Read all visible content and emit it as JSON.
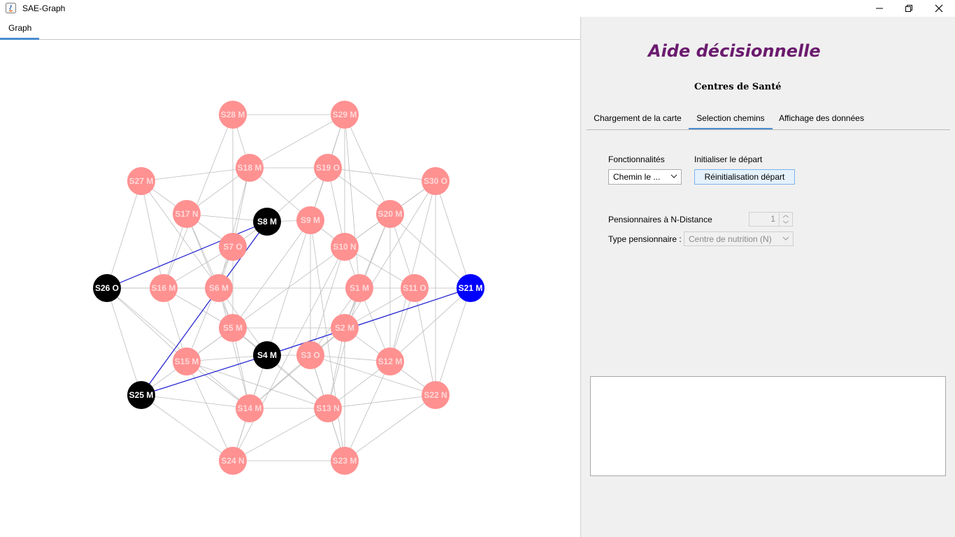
{
  "window": {
    "title": "SAE-Graph"
  },
  "graph_tab": {
    "label": "Graph"
  },
  "panel": {
    "title": "Aide décisionnelle",
    "subtitle": "Centres de Santé",
    "tabs": [
      {
        "label": "Chargement de la carte"
      },
      {
        "label": "Selection chemins",
        "selected": true
      },
      {
        "label": "Affichage des données"
      }
    ],
    "fonctionnalites_label": "Fonctionnalités",
    "fonctionnalites_value": "Chemin le ...",
    "initialiser_label": "Initialiser le départ",
    "reinit_button": "Réinitialisation départ",
    "pension_label": "Pensionnaires à N-Distance",
    "pension_value": "1",
    "type_label": "Type pensionnaire :",
    "type_value": "Centre de nutrition (N)",
    "output": ""
  },
  "colors": {
    "node_default": "#ff9191",
    "node_path": "#000000",
    "node_target": "#0000ff",
    "edge": "#bdbdbd",
    "path_edge": "#1a1ad0",
    "title": "#6b1b6e",
    "tab_accent": "#4a8cd0"
  },
  "graph": {
    "nodes": [
      {
        "id": "S1",
        "label": "S1 M",
        "state": "default"
      },
      {
        "id": "S2",
        "label": "S2 M",
        "state": "default"
      },
      {
        "id": "S3",
        "label": "S3 O",
        "state": "default"
      },
      {
        "id": "S4",
        "label": "S4 M",
        "state": "path"
      },
      {
        "id": "S5",
        "label": "S5 M",
        "state": "default"
      },
      {
        "id": "S6",
        "label": "S6 M",
        "state": "default"
      },
      {
        "id": "S7",
        "label": "S7 O",
        "state": "default"
      },
      {
        "id": "S8",
        "label": "S8 M",
        "state": "path"
      },
      {
        "id": "S9",
        "label": "S9 M",
        "state": "default"
      },
      {
        "id": "S10",
        "label": "S10 N",
        "state": "default"
      },
      {
        "id": "S11",
        "label": "S11 O",
        "state": "default"
      },
      {
        "id": "S12",
        "label": "S12 M",
        "state": "default"
      },
      {
        "id": "S13",
        "label": "S13 N",
        "state": "default"
      },
      {
        "id": "S14",
        "label": "S14 M",
        "state": "default"
      },
      {
        "id": "S15",
        "label": "S15 M",
        "state": "default"
      },
      {
        "id": "S16",
        "label": "S16 M",
        "state": "default"
      },
      {
        "id": "S17",
        "label": "S17 N",
        "state": "default"
      },
      {
        "id": "S18",
        "label": "S18 M",
        "state": "default"
      },
      {
        "id": "S19",
        "label": "S19 O",
        "state": "default"
      },
      {
        "id": "S20",
        "label": "S20 M",
        "state": "default"
      },
      {
        "id": "S21",
        "label": "S21 M",
        "state": "target"
      },
      {
        "id": "S22",
        "label": "S22 N",
        "state": "default"
      },
      {
        "id": "S23",
        "label": "S23 M",
        "state": "default"
      },
      {
        "id": "S24",
        "label": "S24 N",
        "state": "default"
      },
      {
        "id": "S25",
        "label": "S25 M",
        "state": "path"
      },
      {
        "id": "S26",
        "label": "S26 O",
        "state": "path"
      },
      {
        "id": "S27",
        "label": "S27 M",
        "state": "default"
      },
      {
        "id": "S28",
        "label": "S28 M",
        "state": "default"
      },
      {
        "id": "S29",
        "label": "S29 M",
        "state": "default"
      },
      {
        "id": "S30",
        "label": "S30 O",
        "state": "default"
      }
    ],
    "path_edges": [
      [
        "S26",
        "S8"
      ],
      [
        "S8",
        "S25"
      ],
      [
        "S25",
        "S4"
      ],
      [
        "S4",
        "S21"
      ]
    ],
    "edges": [
      [
        "S28",
        "S18"
      ],
      [
        "S28",
        "S29"
      ],
      [
        "S28",
        "S7"
      ],
      [
        "S28",
        "S16"
      ],
      [
        "S29",
        "S19"
      ],
      [
        "S29",
        "S18"
      ],
      [
        "S29",
        "S20"
      ],
      [
        "S29",
        "S10"
      ],
      [
        "S29",
        "S1"
      ],
      [
        "S29",
        "S9"
      ],
      [
        "S27",
        "S17"
      ],
      [
        "S27",
        "S18"
      ],
      [
        "S27",
        "S6"
      ],
      [
        "S27",
        "S16"
      ],
      [
        "S30",
        "S20"
      ],
      [
        "S30",
        "S10"
      ],
      [
        "S30",
        "S12"
      ],
      [
        "S30",
        "S2"
      ],
      [
        "S30",
        "S22"
      ],
      [
        "S30",
        "S19"
      ],
      [
        "S18",
        "S19"
      ],
      [
        "S18",
        "S9"
      ],
      [
        "S18",
        "S7"
      ],
      [
        "S18",
        "S17"
      ],
      [
        "S18",
        "S6"
      ],
      [
        "S19",
        "S20"
      ],
      [
        "S19",
        "S10"
      ],
      [
        "S19",
        "S8"
      ],
      [
        "S19",
        "S9"
      ],
      [
        "S17",
        "S7"
      ],
      [
        "S17",
        "S16"
      ],
      [
        "S17",
        "S6"
      ],
      [
        "S17",
        "S5"
      ],
      [
        "S17",
        "S8"
      ],
      [
        "S20",
        "S10"
      ],
      [
        "S20",
        "S11"
      ],
      [
        "S20",
        "S1"
      ],
      [
        "S20",
        "S2"
      ],
      [
        "S20",
        "S12"
      ],
      [
        "S8",
        "S9"
      ],
      [
        "S8",
        "S7"
      ],
      [
        "S8",
        "S6"
      ],
      [
        "S9",
        "S10"
      ],
      [
        "S9",
        "S4"
      ],
      [
        "S9",
        "S3"
      ],
      [
        "S9",
        "S5"
      ],
      [
        "S7",
        "S6"
      ],
      [
        "S7",
        "S16"
      ],
      [
        "S7",
        "S5"
      ],
      [
        "S7",
        "S15"
      ],
      [
        "S10",
        "S1"
      ],
      [
        "S10",
        "S11"
      ],
      [
        "S10",
        "S3"
      ],
      [
        "S10",
        "S15"
      ],
      [
        "S26",
        "S16"
      ],
      [
        "S26",
        "S27"
      ],
      [
        "S26",
        "S6"
      ],
      [
        "S26",
        "S25"
      ],
      [
        "S26",
        "S15"
      ],
      [
        "S26",
        "S14"
      ],
      [
        "S16",
        "S6"
      ],
      [
        "S16",
        "S15"
      ],
      [
        "S16",
        "S5"
      ],
      [
        "S6",
        "S1"
      ],
      [
        "S6",
        "S5"
      ],
      [
        "S6",
        "S4"
      ],
      [
        "S6",
        "S14"
      ],
      [
        "S1",
        "S11"
      ],
      [
        "S1",
        "S2"
      ],
      [
        "S1",
        "S3"
      ],
      [
        "S1",
        "S12"
      ],
      [
        "S1",
        "S13"
      ],
      [
        "S11",
        "S21"
      ],
      [
        "S11",
        "S12"
      ],
      [
        "S11",
        "S2"
      ],
      [
        "S11",
        "S22"
      ],
      [
        "S21",
        "S12"
      ],
      [
        "S21",
        "S22"
      ],
      [
        "S21",
        "S20"
      ],
      [
        "S21",
        "S30"
      ],
      [
        "S5",
        "S4"
      ],
      [
        "S5",
        "S15"
      ],
      [
        "S5",
        "S14"
      ],
      [
        "S5",
        "S13"
      ],
      [
        "S5",
        "S2"
      ],
      [
        "S2",
        "S3"
      ],
      [
        "S2",
        "S12"
      ],
      [
        "S2",
        "S13"
      ],
      [
        "S2",
        "S14"
      ],
      [
        "S4",
        "S3"
      ],
      [
        "S4",
        "S14"
      ],
      [
        "S4",
        "S15"
      ],
      [
        "S4",
        "S24"
      ],
      [
        "S4",
        "S13"
      ],
      [
        "S3",
        "S12"
      ],
      [
        "S3",
        "S13"
      ],
      [
        "S3",
        "S14"
      ],
      [
        "S3",
        "S23"
      ],
      [
        "S3",
        "S22"
      ],
      [
        "S15",
        "S14"
      ],
      [
        "S15",
        "S25"
      ],
      [
        "S15",
        "S24"
      ],
      [
        "S15",
        "S13"
      ],
      [
        "S12",
        "S22"
      ],
      [
        "S12",
        "S13"
      ],
      [
        "S12",
        "S23"
      ],
      [
        "S25",
        "S14"
      ],
      [
        "S25",
        "S24"
      ],
      [
        "S25",
        "S6"
      ],
      [
        "S14",
        "S24"
      ],
      [
        "S14",
        "S13"
      ],
      [
        "S13",
        "S23"
      ],
      [
        "S13",
        "S24"
      ],
      [
        "S22",
        "S23"
      ],
      [
        "S22",
        "S13"
      ],
      [
        "S24",
        "S23"
      ],
      [
        "S24",
        "S10"
      ],
      [
        "S23",
        "S2"
      ],
      [
        "S23",
        "S9"
      ]
    ]
  }
}
